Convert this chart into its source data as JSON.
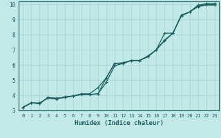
{
  "xlabel": "Humidex (Indice chaleur)",
  "ylabel": "",
  "bg_color": "#c2e8e8",
  "grid_color": "#a8d0d0",
  "line_color": "#1a5f5f",
  "xlim": [
    -0.5,
    23.5
  ],
  "ylim": [
    3.0,
    10.2
  ],
  "x_ticks": [
    0,
    1,
    2,
    3,
    4,
    5,
    6,
    7,
    8,
    9,
    10,
    11,
    12,
    13,
    14,
    15,
    16,
    17,
    18,
    19,
    20,
    21,
    22,
    23
  ],
  "y_ticks": [
    3,
    4,
    5,
    6,
    7,
    8,
    9,
    10
  ],
  "line1_x": [
    0,
    1,
    2,
    3,
    4,
    5,
    6,
    7,
    8,
    9,
    10,
    11,
    12,
    13,
    14,
    15,
    16,
    17,
    18,
    19,
    20,
    21,
    22,
    23
  ],
  "line1_y": [
    3.2,
    3.5,
    3.5,
    3.8,
    3.75,
    3.9,
    3.95,
    4.1,
    4.1,
    4.5,
    5.15,
    6.1,
    6.15,
    6.3,
    6.3,
    6.6,
    7.0,
    8.1,
    8.1,
    9.3,
    9.5,
    9.95,
    10.05,
    10.05
  ],
  "line2_x": [
    0,
    1,
    2,
    3,
    4,
    5,
    6,
    7,
    8,
    9,
    10,
    11,
    12,
    13,
    14,
    15,
    16,
    17,
    18,
    19,
    20,
    21,
    22,
    23
  ],
  "line2_y": [
    3.2,
    3.5,
    3.45,
    3.85,
    3.8,
    3.85,
    3.95,
    4.05,
    4.05,
    4.1,
    4.85,
    5.95,
    6.1,
    6.3,
    6.3,
    6.55,
    7.0,
    7.65,
    8.1,
    9.25,
    9.5,
    9.9,
    10.0,
    10.0
  ],
  "line3_x": [
    0,
    1,
    2,
    3,
    4,
    5,
    6,
    7,
    8,
    9,
    10,
    11,
    12,
    13,
    14,
    15,
    16,
    17,
    18,
    19,
    20,
    21,
    22,
    23
  ],
  "line3_y": [
    3.2,
    3.5,
    3.45,
    3.85,
    3.8,
    3.85,
    3.95,
    4.05,
    4.05,
    4.1,
    5.15,
    6.1,
    6.1,
    6.3,
    6.3,
    6.55,
    7.0,
    7.6,
    8.1,
    9.25,
    9.5,
    9.85,
    9.95,
    9.95
  ]
}
